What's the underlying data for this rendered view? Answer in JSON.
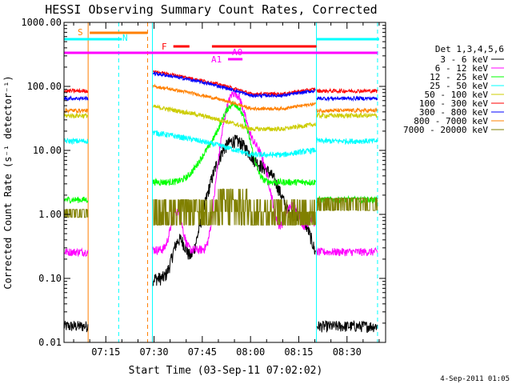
{
  "chart_data": {
    "type": "line",
    "title": "HESSI Observing Summary Count Rates, Corrected",
    "xlabel": "Start Time (03-Sep-11 07:02:02)",
    "ylabel": "Corrected Count Rate (s⁻¹ detector⁻¹)",
    "y_scale": "log",
    "ylim": [
      0.01,
      1000
    ],
    "y_ticks": [
      {
        "value": 0.01,
        "label": "0.01"
      },
      {
        "value": 0.1,
        "label": "0.10"
      },
      {
        "value": 1,
        "label": "1.00"
      },
      {
        "value": 10,
        "label": "10.00"
      },
      {
        "value": 100,
        "label": "100.00"
      },
      {
        "value": 1000,
        "label": "1000.00"
      }
    ],
    "xlim_minutes": [
      422,
      522
    ],
    "x_ticks": [
      {
        "value": 435,
        "label": "07:15"
      },
      {
        "value": 450,
        "label": "07:30"
      },
      {
        "value": 465,
        "label": "07:45"
      },
      {
        "value": 480,
        "label": "08:00"
      },
      {
        "value": 495,
        "label": "08:15"
      },
      {
        "value": 510,
        "label": "08:30"
      }
    ],
    "legend_title": "Det 1,3,4,5,6",
    "legend_position": "right",
    "series": [
      {
        "name": "3 - 6 keV",
        "color": "#000000",
        "base": 0.1,
        "peak": 13,
        "noise": 0.06,
        "bkg": 0.018
      },
      {
        "name": "6 - 12 keV",
        "color": "#ff00ff",
        "base": 0.28,
        "peak": 80,
        "noise": 0.04,
        "bkg": 0.26
      },
      {
        "name": "12 - 25 keV",
        "color": "#00ff00",
        "base": 3.2,
        "peak": 45,
        "noise": 0.03,
        "bkg": 1.7
      },
      {
        "name": "25 - 50 keV",
        "color": "#00ffff",
        "base": 19,
        "peak": 0,
        "noise": 0.025,
        "bkg": 14
      },
      {
        "name": "50 - 100 keV",
        "color": "#cccc00",
        "base": 48,
        "peak": 0,
        "noise": 0.02,
        "bkg": 35
      },
      {
        "name": "100 - 300 keV",
        "color": "#ff0000",
        "base": 170,
        "peak": 0,
        "noise": 0.015,
        "bkg": 85
      },
      {
        "name": "300 - 800 keV",
        "color": "#0000ff",
        "base": 160,
        "peak": 0,
        "noise": 0.015,
        "bkg": 65
      },
      {
        "name": "800 - 7000 keV",
        "color": "#ff8000",
        "base": 100,
        "peak": 0,
        "noise": 0.015,
        "bkg": 42
      },
      {
        "name": "7000 - 20000 keV",
        "color": "#808000",
        "base": 1.5,
        "peak": 0,
        "noise": 0.0,
        "bkg": 1.1
      }
    ],
    "annotations": [
      {
        "label": "S",
        "color": "#ff8000"
      },
      {
        "label": "N",
        "color": "#00ffff"
      },
      {
        "label": "F",
        "color": "#ff0000"
      },
      {
        "label": "A0",
        "color": "#ff00ff"
      },
      {
        "label": "A1",
        "color": "#ff00ff"
      }
    ],
    "timestamp": "4-Sep-2011 01:05"
  }
}
